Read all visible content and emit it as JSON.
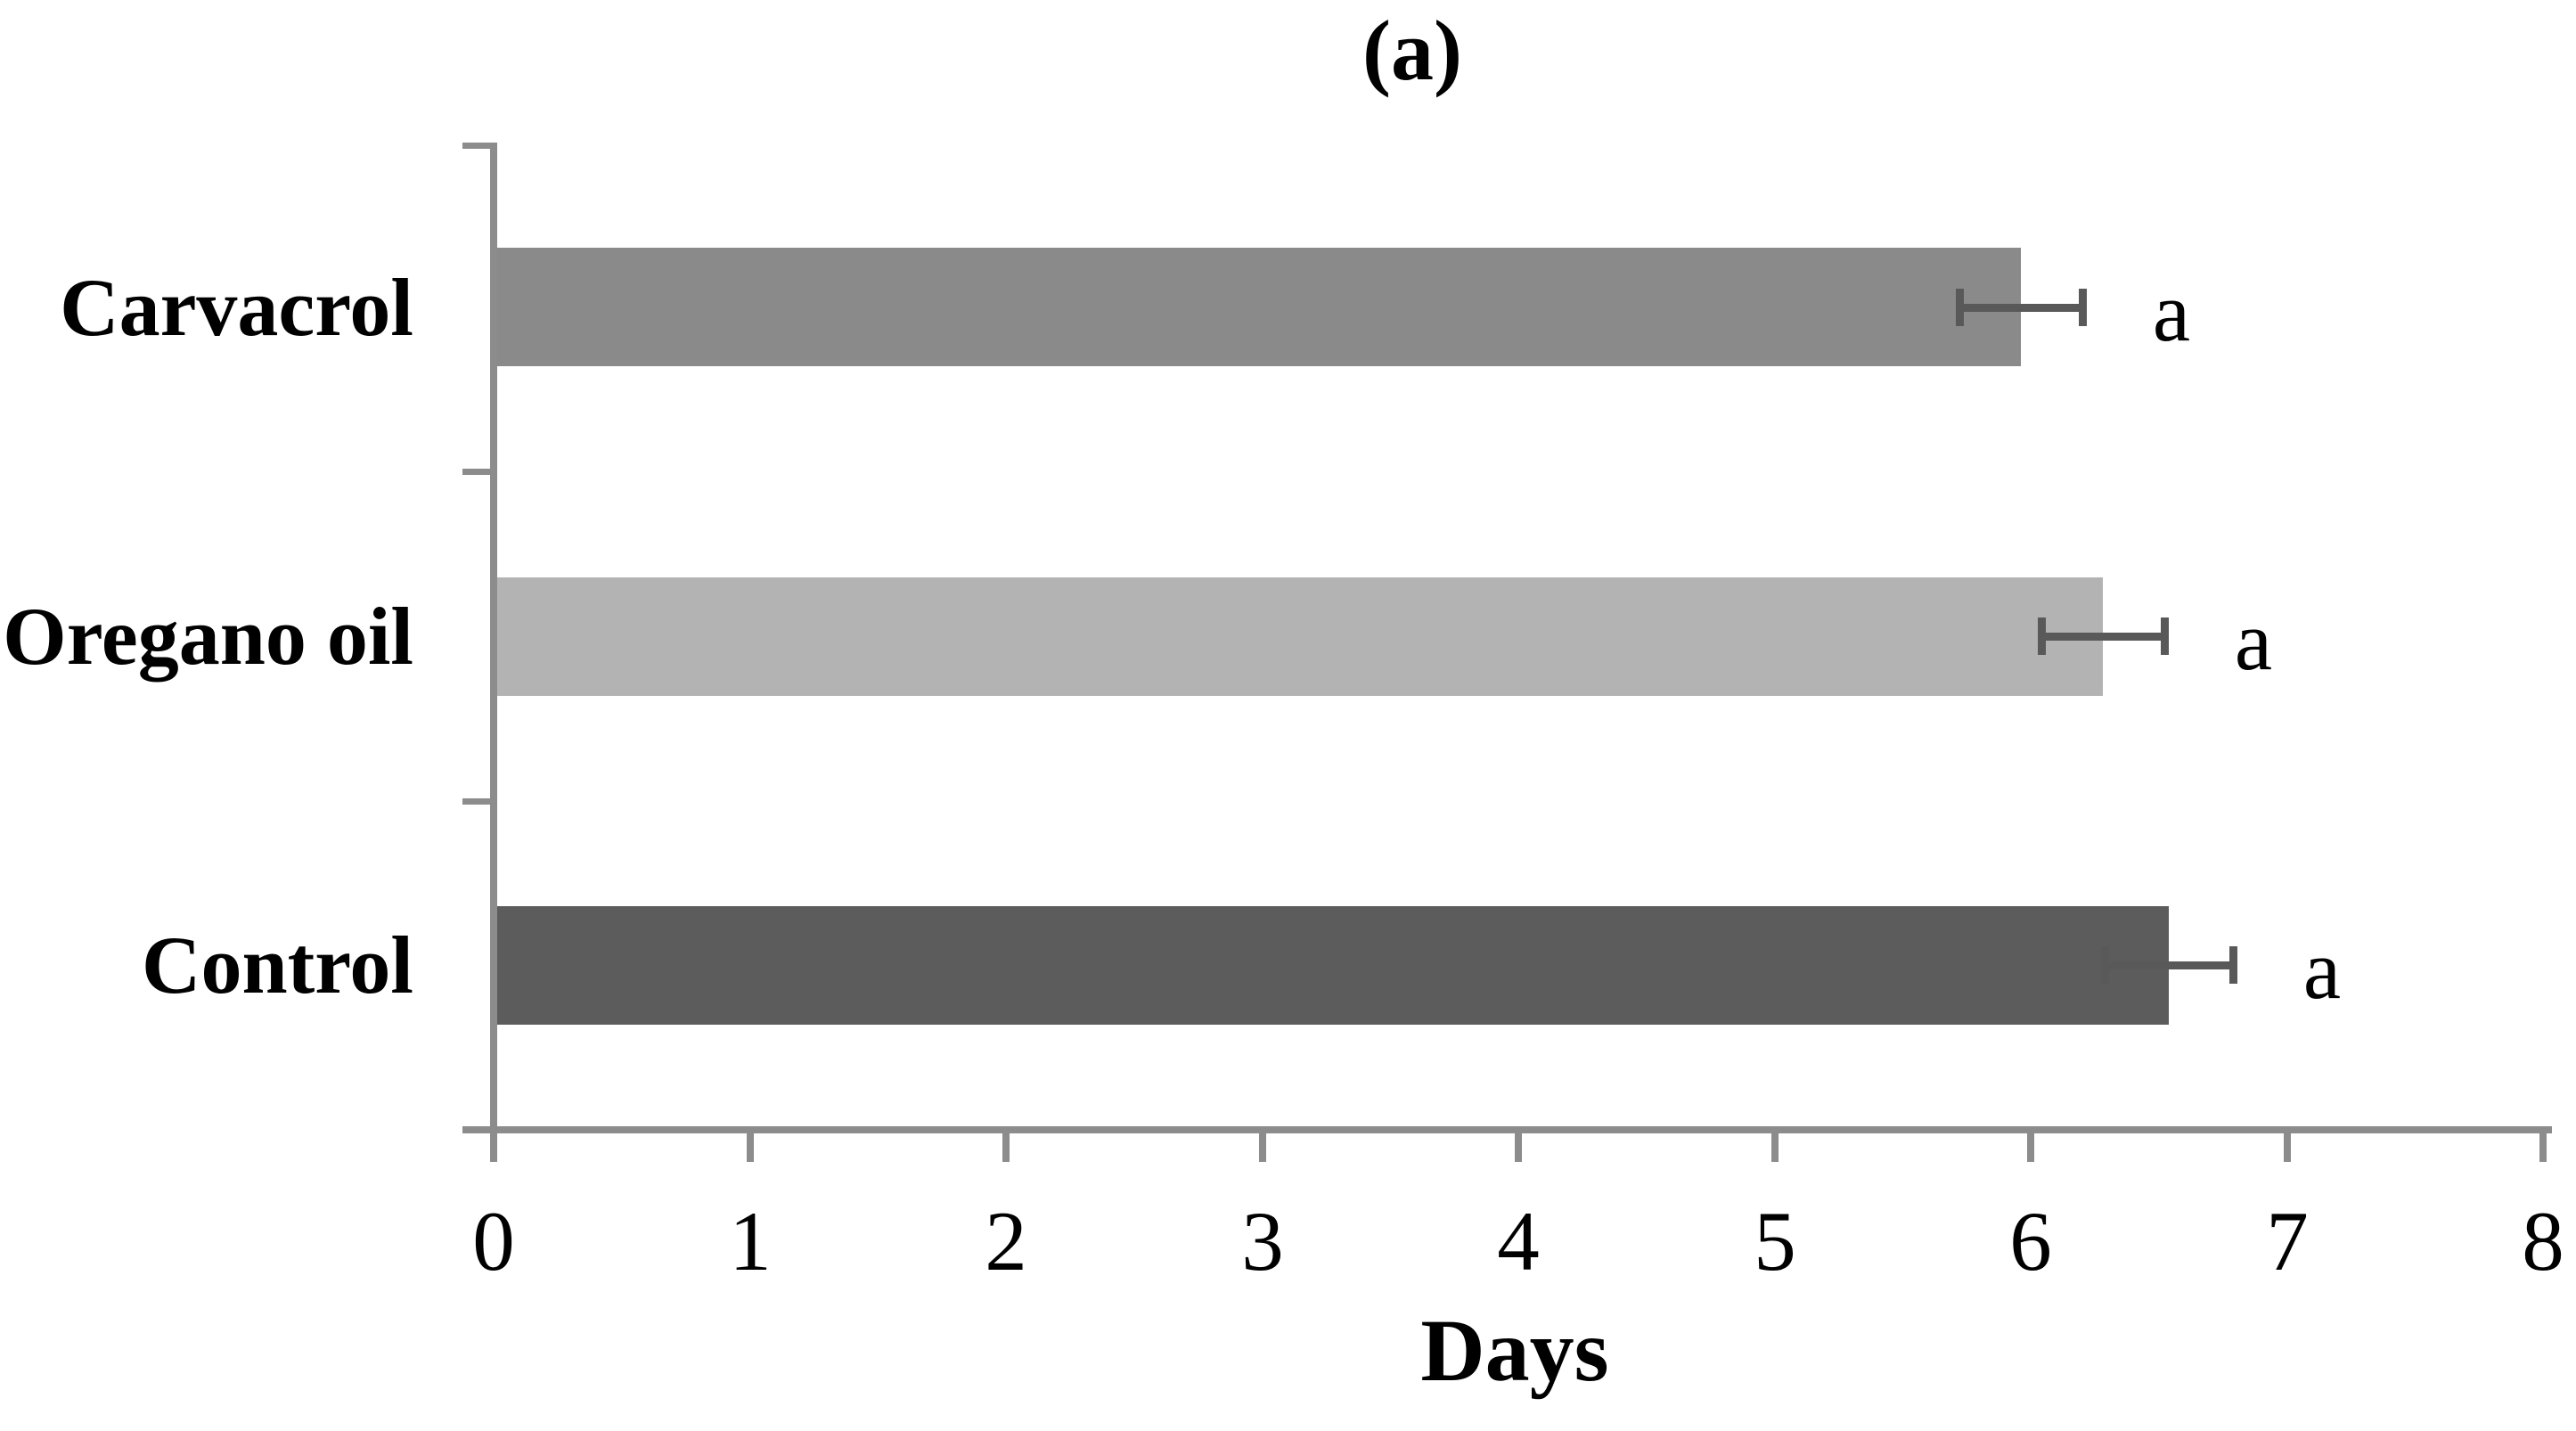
{
  "figure": {
    "panel_label": "(a)"
  },
  "chart_data": {
    "type": "bar",
    "orientation": "horizontal",
    "title": "(a)",
    "xlabel": "Days",
    "ylabel": "",
    "categories": [
      "Carvacrol",
      "Oregano oil",
      "Control"
    ],
    "values": [
      5.96,
      6.28,
      6.54
    ],
    "errors": [
      0.24,
      0.24,
      0.25
    ],
    "significance_letters": [
      "a",
      "a",
      "a"
    ],
    "bar_colors": [
      "#8a8a8a",
      "#b3b3b3",
      "#5c5c5c"
    ],
    "error_bar_color": "#595959",
    "axis_color": "#8c8c8c",
    "xlim": [
      0,
      8
    ],
    "xticks": [
      0,
      1,
      2,
      3,
      4,
      5,
      6,
      7,
      8
    ],
    "grid": false,
    "legend": false
  }
}
